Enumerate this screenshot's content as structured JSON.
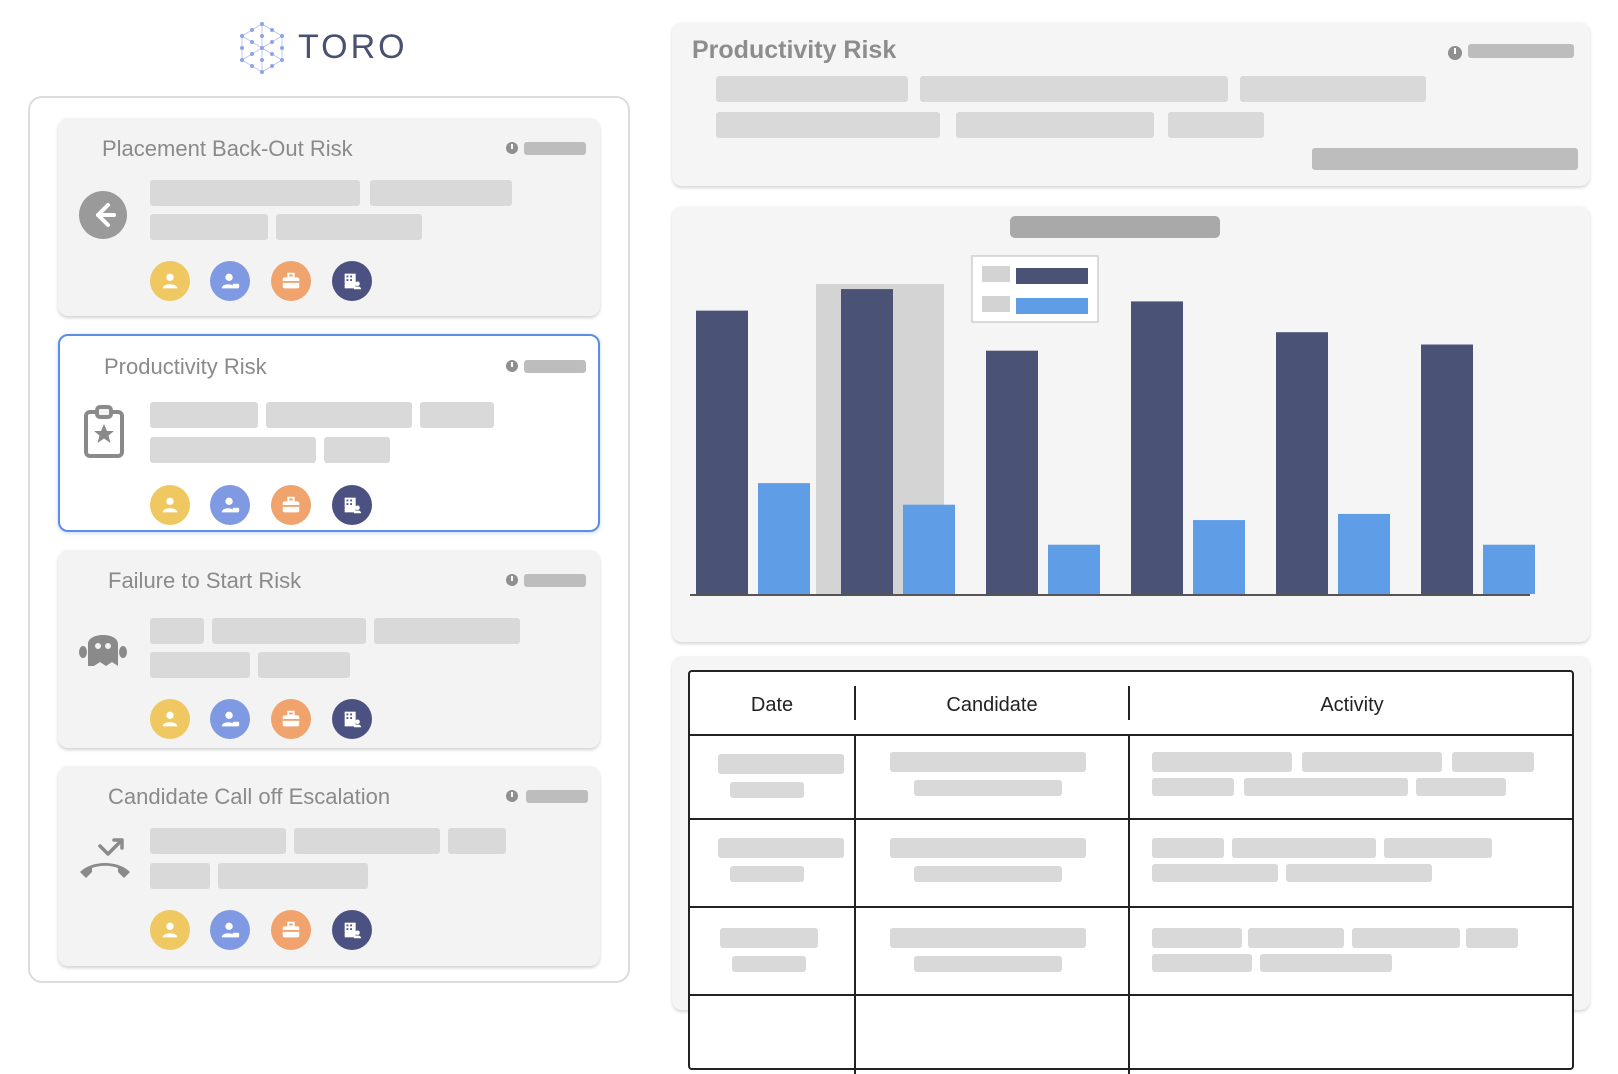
{
  "brand": {
    "name": "TORO"
  },
  "risk_cards": [
    {
      "title": "Placement Back-Out Risk",
      "icon": "back-arrow-icon",
      "selected": false
    },
    {
      "title": "Productivity Risk",
      "icon": "clipboard-star-icon",
      "selected": true
    },
    {
      "title": "Failure to Start Risk",
      "icon": "ghost-icon",
      "selected": false
    },
    {
      "title": "Candidate Call off Escalation",
      "icon": "missed-call-icon",
      "selected": false
    }
  ],
  "avatar_icons": [
    {
      "name": "candidate-icon",
      "color": "#efc862"
    },
    {
      "name": "recruiter-icon",
      "color": "#7f99e3"
    },
    {
      "name": "job-icon",
      "color": "#f0a36d"
    },
    {
      "name": "client-company-icon",
      "color": "#4b5281"
    }
  ],
  "detail": {
    "title": "Productivity Risk"
  },
  "chart_data": {
    "type": "bar",
    "categories": [
      "",
      "",
      "",
      "",
      "",
      ""
    ],
    "series": [
      {
        "color": "#4a5275",
        "values": [
          92,
          99,
          79,
          95,
          85,
          81
        ]
      },
      {
        "color": "#5f9de6",
        "values": [
          36,
          29,
          16,
          24,
          26,
          16
        ]
      }
    ],
    "ylim": [
      0,
      100
    ],
    "highlighted_category_index": 1,
    "legend": "top-center",
    "grid": false
  },
  "table": {
    "columns": [
      "Date",
      "Candidate",
      "Activity"
    ]
  },
  "colors": {
    "accent": "#5b8ee4",
    "series_dark": "#4a5275",
    "series_light": "#5f9de6"
  }
}
